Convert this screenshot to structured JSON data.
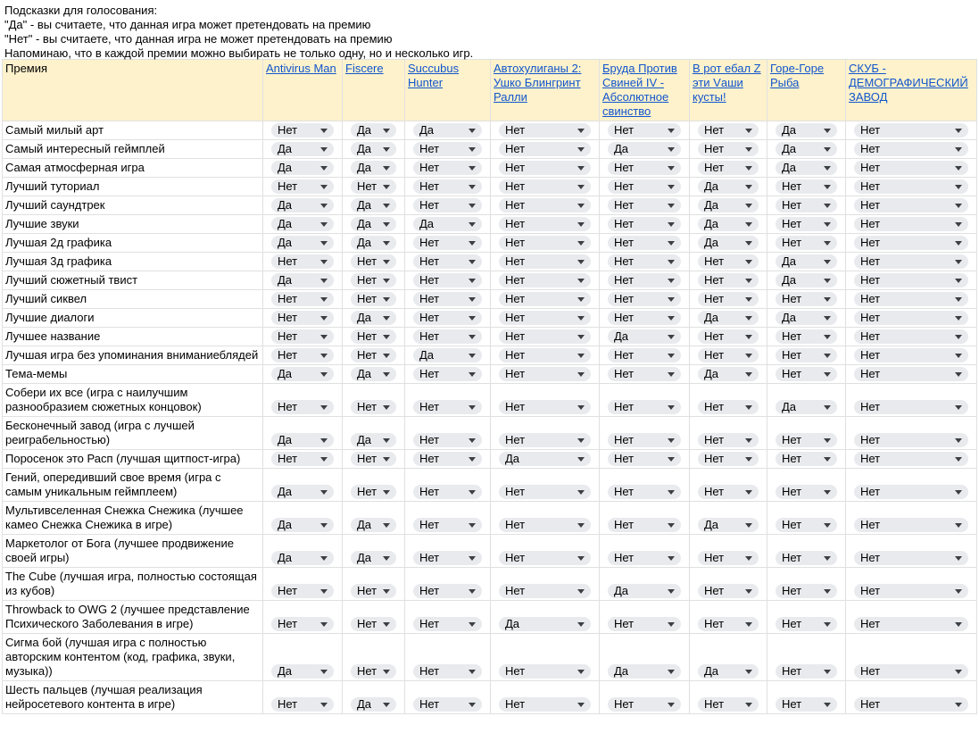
{
  "hints": [
    "Подсказки для голосования:",
    "\"Да\" - вы считаете, что данная игра может претендовать на премию",
    "\"Нет\" - вы считаете, что данная игра не может претендовать на премию",
    "Напоминаю, что в каждой премии можно выбирать не только одну, но и несколько игр."
  ],
  "table": {
    "header": [
      "Премия",
      "Antivirus Man",
      "Fiscere",
      "Succubus Hunter",
      "Автохулиганы 2: Ушко Блингринт Ралли",
      "Бруда Против Свиней IV - Абсолютное свинство",
      "В рот ебал Z эти Vаши кусты!",
      "Горе-Горе Рыба",
      "СКУБ - ДЕМОГРАФИЧЕСКИЙ ЗАВОД"
    ],
    "rows": [
      [
        "Самый милый арт",
        "Нет",
        "Да",
        "Да",
        "Нет",
        "Нет",
        "Нет",
        "Да",
        "Нет"
      ],
      [
        "Самый интересный геймплей",
        "Да",
        "Да",
        "Нет",
        "Нет",
        "Да",
        "Нет",
        "Да",
        "Нет"
      ],
      [
        "Самая атмосферная игра",
        "Да",
        "Да",
        "Нет",
        "Нет",
        "Нет",
        "Нет",
        "Да",
        "Нет"
      ],
      [
        "Лучший туториал",
        "Нет",
        "Нет",
        "Нет",
        "Нет",
        "Нет",
        "Да",
        "Нет",
        "Нет"
      ],
      [
        "Лучший саундтрек",
        "Да",
        "Да",
        "Нет",
        "Нет",
        "Нет",
        "Да",
        "Нет",
        "Нет"
      ],
      [
        "Лучшие звуки",
        "Да",
        "Да",
        "Да",
        "Нет",
        "Нет",
        "Да",
        "Нет",
        "Нет"
      ],
      [
        "Лучшая 2д графика",
        "Да",
        "Да",
        "Нет",
        "Нет",
        "Нет",
        "Да",
        "Нет",
        "Нет"
      ],
      [
        "Лучшая 3д графика",
        "Нет",
        "Нет",
        "Нет",
        "Нет",
        "Нет",
        "Нет",
        "Да",
        "Нет"
      ],
      [
        "Лучший сюжетный твист",
        "Да",
        "Нет",
        "Нет",
        "Нет",
        "Нет",
        "Нет",
        "Да",
        "Нет"
      ],
      [
        "Лучший сиквел",
        "Нет",
        "Нет",
        "Нет",
        "Нет",
        "Нет",
        "Нет",
        "Нет",
        "Нет"
      ],
      [
        "Лучшие диалоги",
        "Нет",
        "Да",
        "Нет",
        "Нет",
        "Нет",
        "Да",
        "Да",
        "Нет"
      ],
      [
        "Лучшее название",
        "Нет",
        "Нет",
        "Нет",
        "Нет",
        "Да",
        "Нет",
        "Нет",
        "Нет"
      ],
      [
        "Лучшая игра без упоминания вниманиеблядей",
        "Нет",
        "Нет",
        "Да",
        "Нет",
        "Нет",
        "Нет",
        "Нет",
        "Нет"
      ],
      [
        "Тема-мемы",
        "Да",
        "Да",
        "Нет",
        "Нет",
        "Нет",
        "Да",
        "Нет",
        "Нет"
      ],
      [
        "Собери их все (игра с наилучшим разнообразием сюжетных концовок)",
        "Нет",
        "Нет",
        "Нет",
        "Нет",
        "Нет",
        "Нет",
        "Да",
        "Нет"
      ],
      [
        "Бесконечный завод (игра с лучшей реиграбельностью)",
        "Да",
        "Да",
        "Нет",
        "Нет",
        "Нет",
        "Нет",
        "Нет",
        "Нет"
      ],
      [
        "Поросенок это Расп (лучшая щитпост-игра)",
        "Нет",
        "Нет",
        "Нет",
        "Да",
        "Нет",
        "Нет",
        "Нет",
        "Нет"
      ],
      [
        "Гений, опередивший свое время (игра с самым уникальным геймплеем)",
        "Да",
        "Нет",
        "Нет",
        "Нет",
        "Нет",
        "Нет",
        "Нет",
        "Нет"
      ],
      [
        "Мультивселенная Снежка Снежика (лучшее камео Снежка Снежика в игре)",
        "Да",
        "Да",
        "Нет",
        "Нет",
        "Нет",
        "Да",
        "Нет",
        "Нет"
      ],
      [
        "Маркетолог от Бога (лучшее продвижение своей игры)",
        "Да",
        "Да",
        "Нет",
        "Нет",
        "Нет",
        "Нет",
        "Нет",
        "Нет"
      ],
      [
        "The Cube (лучшая игра, полностью состоящая из кубов)",
        "Нет",
        "Нет",
        "Нет",
        "Нет",
        "Да",
        "Нет",
        "Нет",
        "Нет"
      ],
      [
        "Throwback to OWG 2 (лучшее представление Психического Заболевания в игре)",
        "Нет",
        "Нет",
        "Нет",
        "Да",
        "Нет",
        "Нет",
        "Нет",
        "Нет"
      ],
      [
        "Сигма бой (лучшая игра с полностью авторским контентом (код, графика, звуки, музыка))",
        "Да",
        "Нет",
        "Нет",
        "Нет",
        "Да",
        "Да",
        "Нет",
        "Нет"
      ],
      [
        "Шесть пальцев (лучшая реализация нейросетевого контента в игре)",
        "Нет",
        "Да",
        "Нет",
        "Нет",
        "Нет",
        "Нет",
        "Нет",
        "Нет"
      ]
    ]
  }
}
